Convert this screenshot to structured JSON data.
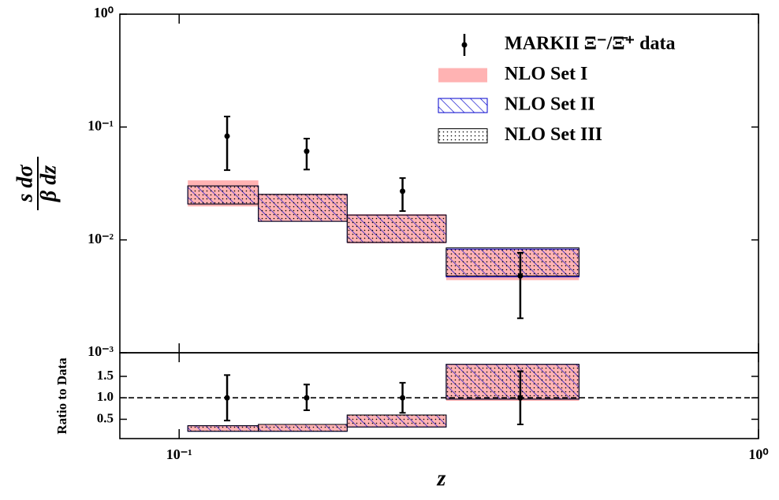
{
  "chart_data": [
    {
      "type": "errorbar-band",
      "ylabel_numerator": "s dσ",
      "ylabel_denominator": "β dz",
      "xscale": "log",
      "yscale": "log",
      "xlim": [
        0.079,
        1
      ],
      "ylim": [
        0.001,
        1
      ],
      "yticks": [
        {
          "value": 0.001,
          "label": "10⁻³"
        },
        {
          "value": 0.01,
          "label": "10⁻²"
        },
        {
          "value": 0.1,
          "label": "10⁻¹"
        },
        {
          "value": 1,
          "label": "10⁰"
        }
      ],
      "legend": "upper right",
      "points": {
        "name": "MARKII Ξ⁻/Ξ̄⁺ data",
        "color": "#000000",
        "x": [
          0.121,
          0.166,
          0.243,
          0.388
        ],
        "values": [
          0.083,
          0.061,
          0.027,
          0.0048
        ],
        "lower": [
          0.0415,
          0.042,
          0.018,
          0.00202
        ],
        "upper": [
          0.124,
          0.079,
          0.0353,
          0.0077
        ]
      },
      "bins": [
        0.1035,
        0.137,
        0.195,
        0.289,
        0.49
      ],
      "bands": [
        {
          "name": "NLO Set I",
          "color": "#ffb3b3",
          "style": "solid",
          "lower": [
            0.0198,
            0.0146,
            0.0093,
            0.0044
          ],
          "upper": [
            0.0337,
            0.0256,
            0.0169,
            0.0083
          ]
        },
        {
          "name": "NLO Set II",
          "color": "#0000cc",
          "style": "hatch",
          "lower": [
            0.0208,
            0.0146,
            0.0095,
            0.0047
          ],
          "upper": [
            0.0301,
            0.0253,
            0.0166,
            0.0083
          ]
        },
        {
          "name": "NLO Set III",
          "color": "#000000",
          "style": "dots",
          "lower": [
            0.0208,
            0.0146,
            0.0095,
            0.0048
          ],
          "upper": [
            0.0301,
            0.0253,
            0.0166,
            0.0085
          ]
        }
      ]
    },
    {
      "type": "errorbar-band",
      "ylabel": "Ratio to Data",
      "xlabel": "z",
      "xscale": "log",
      "xlim": [
        0.079,
        1
      ],
      "ylim": [
        0.05,
        2.05
      ],
      "xticks": [
        {
          "value": 0.1,
          "label": "10⁻¹"
        },
        {
          "value": 1,
          "label": "10⁰"
        }
      ],
      "yticks": [
        {
          "value": 0.5,
          "label": "0.5"
        },
        {
          "value": 1,
          "label": "1.0"
        },
        {
          "value": 1.5,
          "label": "1.5"
        }
      ],
      "reference_line": 1,
      "points": {
        "color": "#000000",
        "x": [
          0.121,
          0.166,
          0.243,
          0.388
        ],
        "values": [
          1,
          1,
          1,
          1
        ],
        "lower": [
          0.47,
          0.71,
          0.65,
          0.38
        ],
        "upper": [
          1.53,
          1.31,
          1.35,
          1.62
        ]
      },
      "bins": [
        0.1035,
        0.137,
        0.195,
        0.289,
        0.49
      ],
      "bands": [
        {
          "color": "#ffb3b3",
          "style": "solid",
          "lower": [
            0.22,
            0.22,
            0.31,
            0.93
          ],
          "upper": [
            0.35,
            0.38,
            0.6,
            1.78
          ]
        },
        {
          "color": "#0000cc",
          "style": "hatch",
          "lower": [
            0.22,
            0.22,
            0.32,
            0.97
          ],
          "upper": [
            0.35,
            0.38,
            0.6,
            1.78
          ]
        },
        {
          "color": "#000000",
          "style": "dots",
          "lower": [
            0.22,
            0.22,
            0.32,
            0.97
          ],
          "upper": [
            0.35,
            0.38,
            0.6,
            1.78
          ]
        }
      ]
    }
  ]
}
